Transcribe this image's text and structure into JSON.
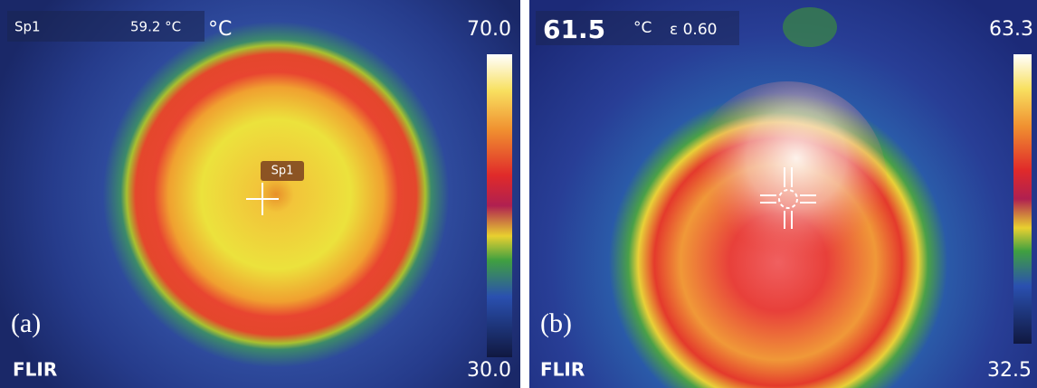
{
  "panels": [
    {
      "spot_name": "Sp1",
      "spot_reading": "59.2 °C",
      "unit": "°C",
      "scale_max": "70.0",
      "spot_marker": "Sp1",
      "label": "(a)",
      "logo": "FLIR",
      "scale_min": "30.0"
    },
    {
      "spot_reading": "61.5",
      "unit": "°C",
      "emissivity": "ε 0.60",
      "scale_max": "63.3",
      "label": "(b)",
      "logo": "FLIR",
      "scale_min": "32.5"
    }
  ]
}
